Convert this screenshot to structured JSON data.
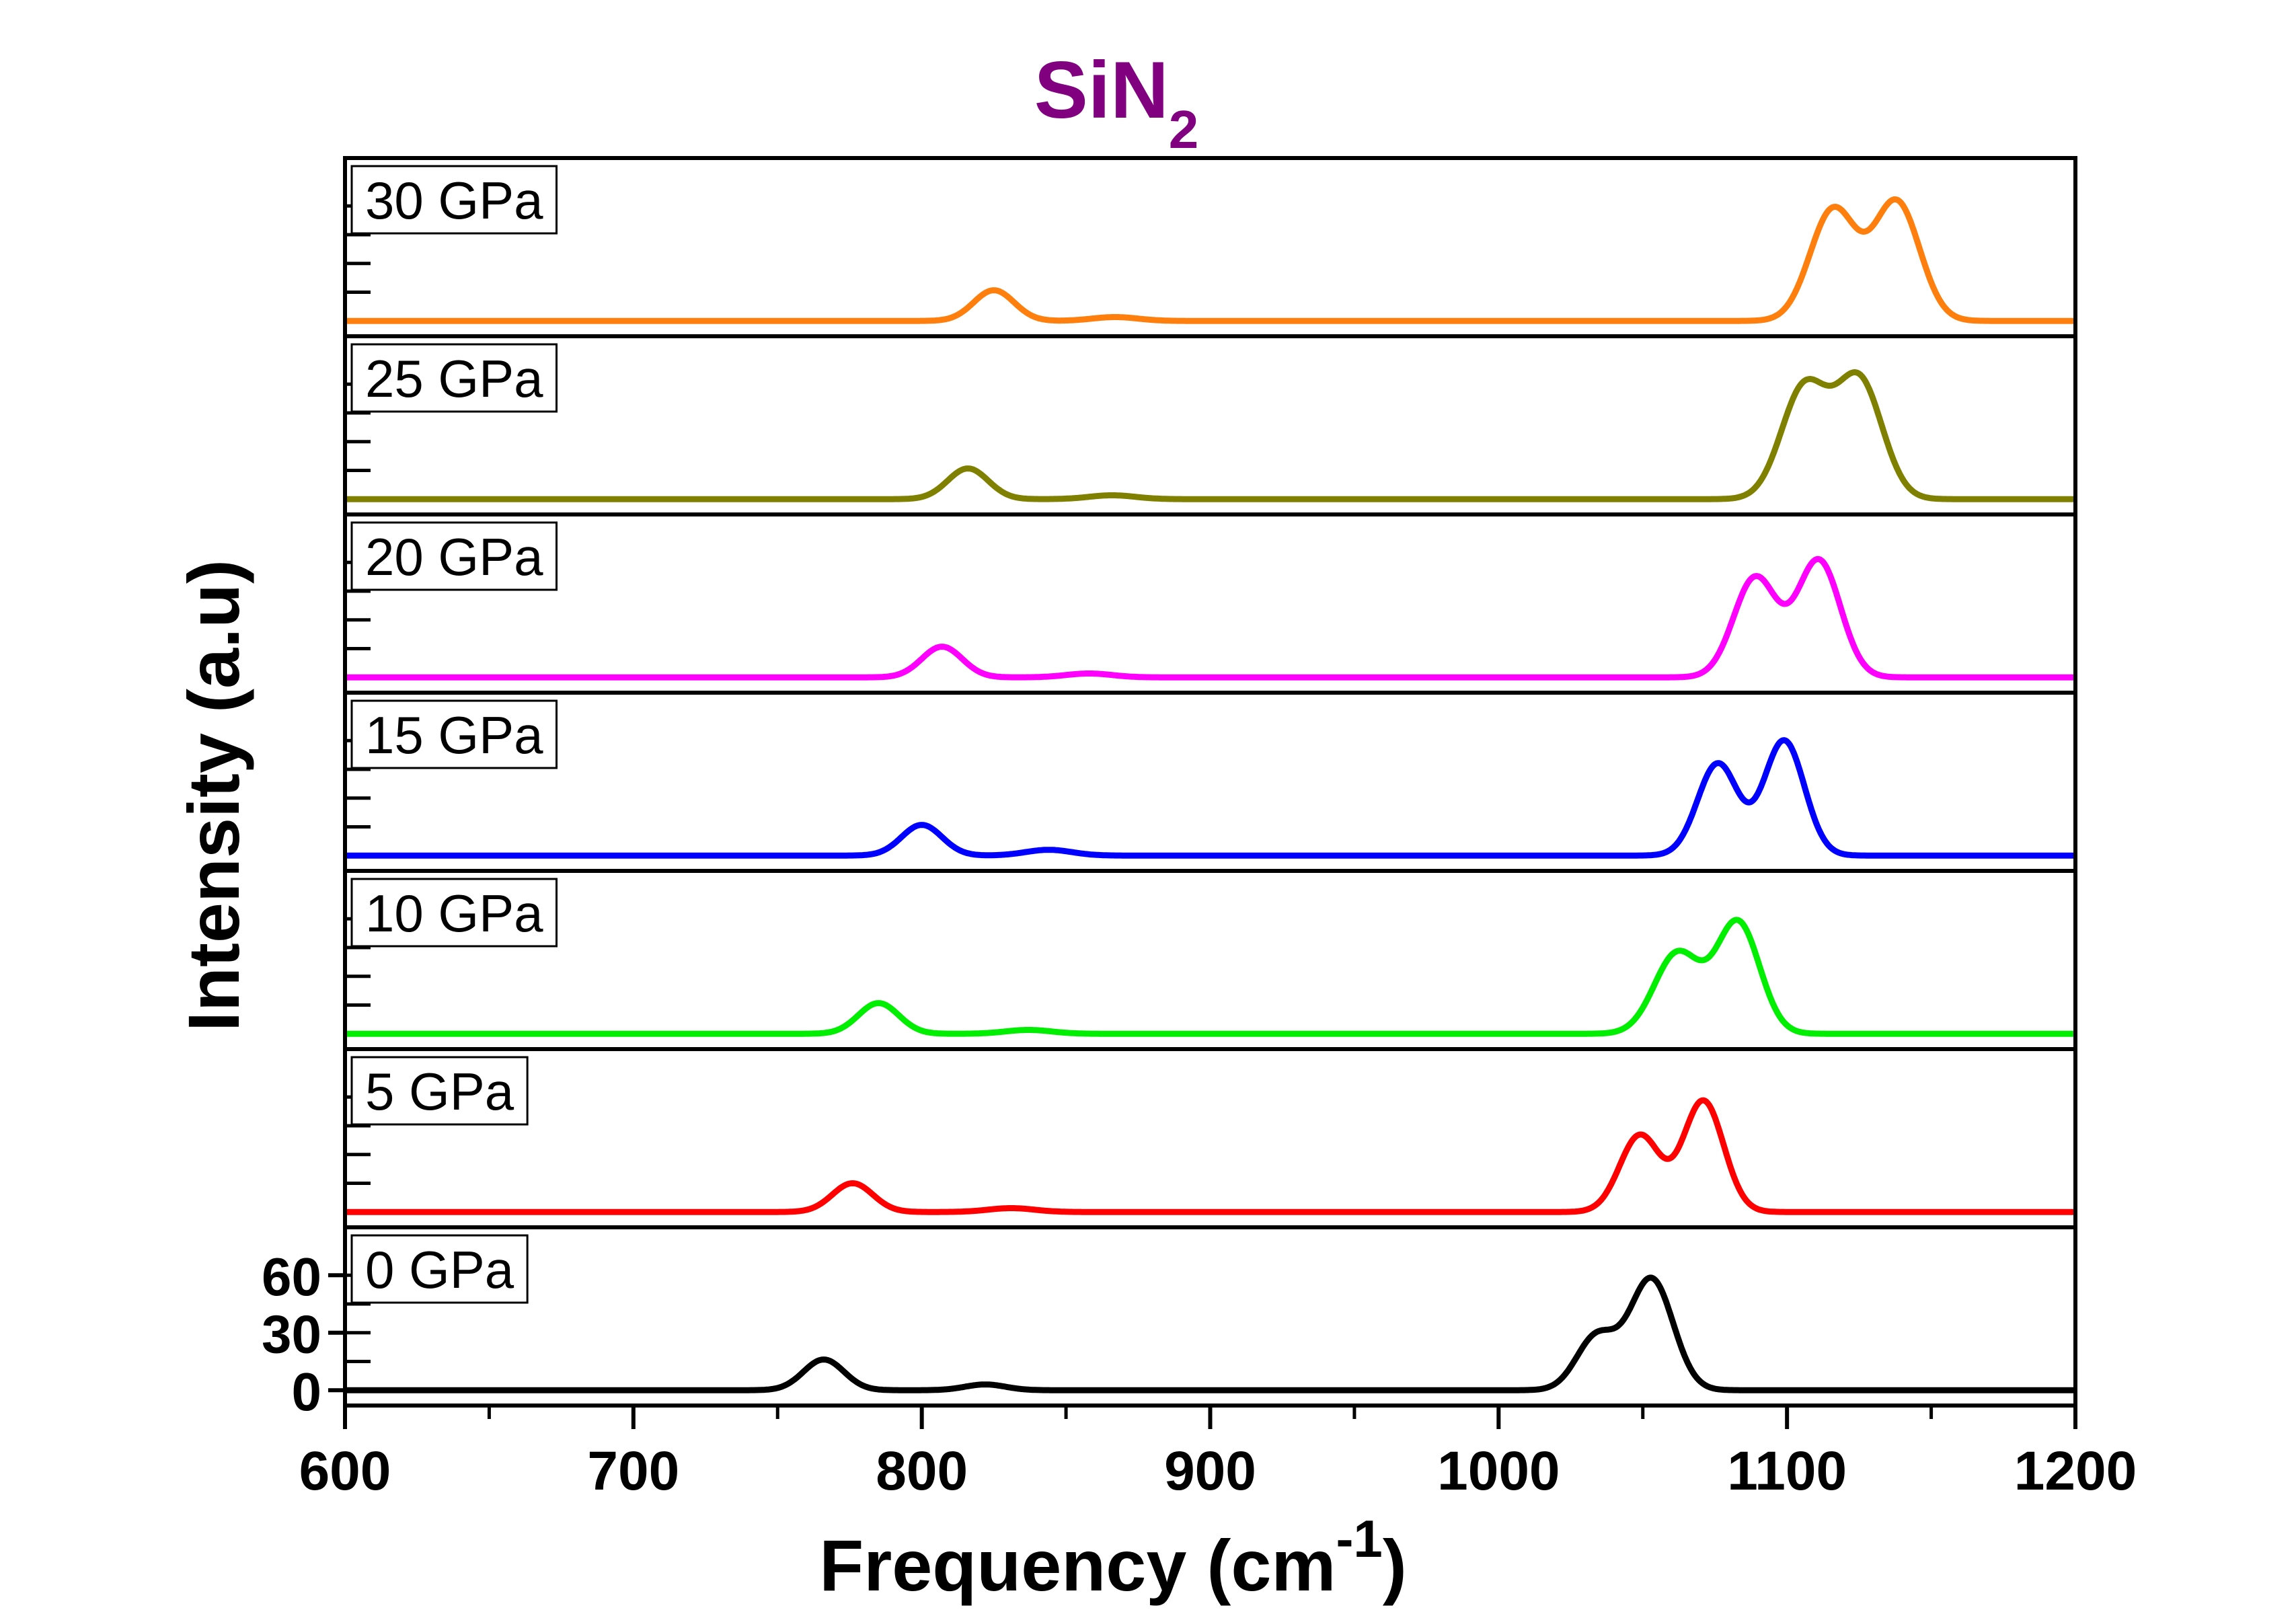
{
  "chart_data": {
    "type": "line",
    "title": "SiN",
    "title_subscript": "2",
    "xlabel": "Frequency (cm",
    "xlabel_superscript": "-1",
    "xlabel_suffix": ")",
    "ylabel": "Intensity (a.u)",
    "xlim": [
      600,
      1200
    ],
    "x_ticks": [
      600,
      700,
      800,
      900,
      1000,
      1100,
      1200
    ],
    "x_tick_labels": [
      "600",
      "700",
      "800",
      "900",
      "1000",
      "1100",
      "1200"
    ],
    "ylim_per_panel": [
      -8,
      85
    ],
    "y_ticks_bottom_panel": [
      0,
      30,
      60
    ],
    "y_tick_labels_bottom_panel": [
      "0",
      "30",
      "60"
    ],
    "series": [
      {
        "name": "30 GPa",
        "color": "#ff7f0e",
        "peaks": [
          {
            "center": 825,
            "height": 16,
            "width": 7
          },
          {
            "center": 867,
            "height": 2,
            "width": 8
          },
          {
            "center": 1116,
            "height": 58,
            "width": 8
          },
          {
            "center": 1138,
            "height": 62,
            "width": 8
          }
        ]
      },
      {
        "name": "25 GPa",
        "color": "#808000",
        "peaks": [
          {
            "center": 816,
            "height": 16,
            "width": 7
          },
          {
            "center": 866,
            "height": 2,
            "width": 8
          },
          {
            "center": 1106,
            "height": 58,
            "width": 8
          },
          {
            "center": 1125,
            "height": 62,
            "width": 8
          }
        ]
      },
      {
        "name": "20 GPa",
        "color": "#ff00ff",
        "peaks": [
          {
            "center": 807,
            "height": 16,
            "width": 7
          },
          {
            "center": 858,
            "height": 2,
            "width": 8
          },
          {
            "center": 1089,
            "height": 52,
            "width": 7.5
          },
          {
            "center": 1111,
            "height": 61,
            "width": 7.5
          }
        ]
      },
      {
        "name": "15 GPa",
        "color": "#0000ff",
        "peaks": [
          {
            "center": 800,
            "height": 16,
            "width": 7
          },
          {
            "center": 844,
            "height": 3,
            "width": 8
          },
          {
            "center": 1076,
            "height": 48,
            "width": 7
          },
          {
            "center": 1099,
            "height": 60,
            "width": 7
          }
        ]
      },
      {
        "name": "10 GPa",
        "color": "#00ee00",
        "peaks": [
          {
            "center": 785,
            "height": 16,
            "width": 7
          },
          {
            "center": 837,
            "height": 2,
            "width": 8
          },
          {
            "center": 1062,
            "height": 42,
            "width": 8
          },
          {
            "center": 1083,
            "height": 58,
            "width": 7.5
          }
        ]
      },
      {
        "name": "5 GPa",
        "color": "#ff0000",
        "peaks": [
          {
            "center": 776,
            "height": 15,
            "width": 7
          },
          {
            "center": 831,
            "height": 2,
            "width": 8
          },
          {
            "center": 1049,
            "height": 40,
            "width": 7
          },
          {
            "center": 1071,
            "height": 58,
            "width": 7
          }
        ]
      },
      {
        "name": "0 GPa",
        "color": "#000000",
        "peaks": [
          {
            "center": 766,
            "height": 16,
            "width": 7
          },
          {
            "center": 822,
            "height": 3,
            "width": 7
          },
          {
            "center": 1034,
            "height": 28,
            "width": 7
          },
          {
            "center": 1053,
            "height": 58,
            "width": 7.5
          }
        ]
      }
    ]
  }
}
